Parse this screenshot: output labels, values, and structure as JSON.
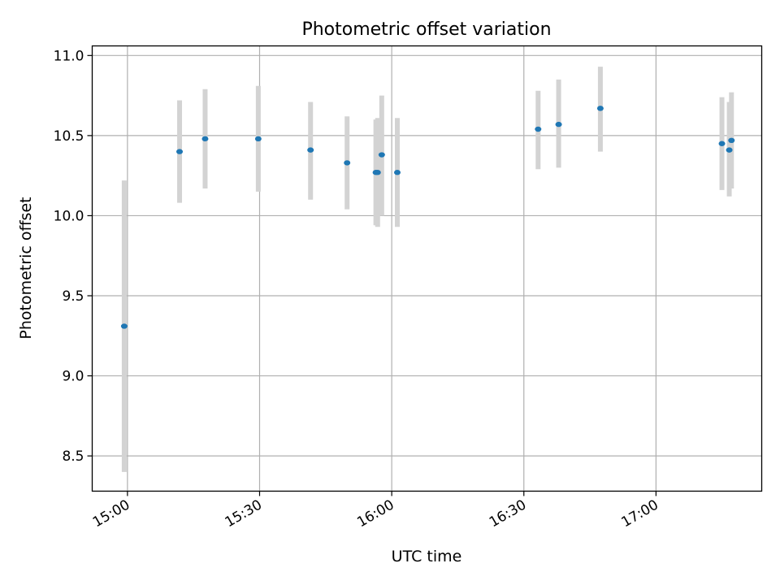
{
  "chart_data": {
    "type": "scatter",
    "title": "Photometric offset variation",
    "xlabel": "UTC time",
    "ylabel": "Photometric offset",
    "x_axis": "time",
    "xlim": [
      "14:52",
      "17:24"
    ],
    "ylim": [
      8.28,
      11.06
    ],
    "x_ticks": [
      "15:00",
      "15:30",
      "16:00",
      "16:30",
      "17:00"
    ],
    "y_ticks": [
      8.5,
      9.0,
      9.5,
      10.0,
      10.5,
      11.0
    ],
    "y_tick_labels": [
      "8.5",
      "9.0",
      "9.5",
      "10.0",
      "10.5",
      "11.0"
    ],
    "grid": true,
    "x_tick_rotation_deg": 30,
    "colors": {
      "point": "#1f77b4",
      "error_bar": "#d3d3d3",
      "grid": "#b0b0b0",
      "axes": "#000000"
    },
    "points": [
      {
        "t": "14:59:16",
        "y": 9.31,
        "lo": 8.4,
        "hi": 10.22
      },
      {
        "t": "15:11:50",
        "y": 10.4,
        "lo": 10.08,
        "hi": 10.72
      },
      {
        "t": "15:17:38",
        "y": 10.48,
        "lo": 10.17,
        "hi": 10.79
      },
      {
        "t": "15:29:42",
        "y": 10.48,
        "lo": 10.15,
        "hi": 10.81
      },
      {
        "t": "15:41:34",
        "y": 10.41,
        "lo": 10.1,
        "hi": 10.71
      },
      {
        "t": "15:49:52",
        "y": 10.33,
        "lo": 10.04,
        "hi": 10.62
      },
      {
        "t": "15:56:24",
        "y": 10.27,
        "lo": 9.94,
        "hi": 10.6
      },
      {
        "t": "15:56:48",
        "y": 10.27,
        "lo": 9.93,
        "hi": 10.61
      },
      {
        "t": "15:57:44",
        "y": 10.38,
        "lo": 10.0,
        "hi": 10.75
      },
      {
        "t": "16:01:16",
        "y": 10.27,
        "lo": 9.93,
        "hi": 10.61
      },
      {
        "t": "16:33:14",
        "y": 10.54,
        "lo": 10.29,
        "hi": 10.78
      },
      {
        "t": "16:37:54",
        "y": 10.57,
        "lo": 10.3,
        "hi": 10.85
      },
      {
        "t": "16:47:22",
        "y": 10.67,
        "lo": 10.4,
        "hi": 10.93
      },
      {
        "t": "17:14:58",
        "y": 10.45,
        "lo": 10.16,
        "hi": 10.74
      },
      {
        "t": "17:16:38",
        "y": 10.41,
        "lo": 10.12,
        "hi": 10.71
      },
      {
        "t": "17:17:08",
        "y": 10.47,
        "lo": 10.17,
        "hi": 10.77
      }
    ]
  }
}
